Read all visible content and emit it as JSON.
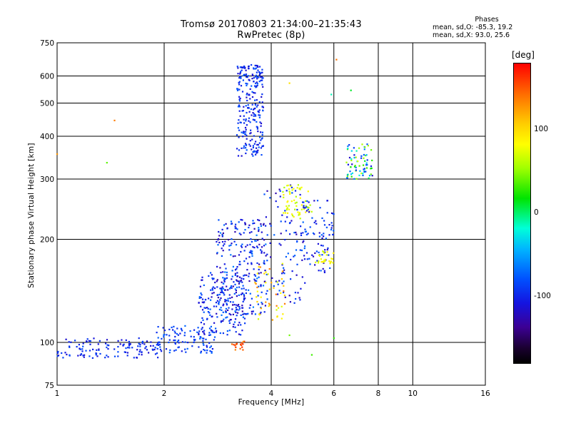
{
  "title": {
    "line1": "Tromsø 20170803 21:34:00–21:35:43",
    "line2": "RwPretec (8p)"
  },
  "phases": {
    "title": "Phases",
    "o_line": "mean, sd,O: -85.3, 19.2",
    "x_line": "mean, sd,X:  93.0, 25.6"
  },
  "colorbar": {
    "unit": "[deg]",
    "ticks": [
      {
        "label": "100",
        "value": 100
      },
      {
        "label": "0",
        "value": 0
      },
      {
        "label": "-100",
        "value": -100
      }
    ],
    "range": [
      -180,
      180
    ],
    "colors": [
      "#000000",
      "#3c0094",
      "#1414e0",
      "#0050ff",
      "#00b4ff",
      "#00ffd8",
      "#00e400",
      "#a0ff00",
      "#ffff00",
      "#ffcc00",
      "#ff6a00",
      "#ff0000"
    ]
  },
  "chart_data": {
    "type": "scatter",
    "xlabel": "Frequency [MHz]",
    "ylabel": "Stationary phase Virtual Height [km]",
    "xscale": "log",
    "yscale": "log",
    "xlim": [
      1,
      16
    ],
    "ylim": [
      75,
      750
    ],
    "xticks": [
      1,
      2,
      4,
      6,
      8,
      10,
      16
    ],
    "yticks": [
      75,
      100,
      200,
      300,
      400,
      500,
      600,
      750
    ],
    "grid": true,
    "point_color_encodes": "phase [deg]",
    "clusters": [
      {
        "x_range": [
          1.0,
          1.95
        ],
        "y_range": [
          90,
          103
        ],
        "phase_range": [
          -120,
          -80
        ],
        "n": 130
      },
      {
        "x_range": [
          1.9,
          2.8
        ],
        "y_range": [
          93,
          112
        ],
        "phase_range": [
          -110,
          -70
        ],
        "n": 110
      },
      {
        "x_range": [
          2.5,
          3.4
        ],
        "y_range": [
          105,
          160
        ],
        "phase_range": [
          -125,
          -70
        ],
        "n": 170
      },
      {
        "x_range": [
          2.8,
          3.9
        ],
        "y_range": [
          120,
          230
        ],
        "phase_range": [
          -135,
          -60
        ],
        "n": 260
      },
      {
        "x_range": [
          3.2,
          3.8
        ],
        "y_range": [
          350,
          650
        ],
        "phase_range": [
          -120,
          -75
        ],
        "n": 260
      },
      {
        "x_range": [
          3.8,
          5.0
        ],
        "y_range": [
          130,
          290
        ],
        "phase_range": [
          -130,
          -70
        ],
        "n": 90
      },
      {
        "x_range": [
          4.3,
          5.2
        ],
        "y_range": [
          230,
          290
        ],
        "phase_range": [
          70,
          110
        ],
        "n": 60
      },
      {
        "x_range": [
          3.6,
          4.4
        ],
        "y_range": [
          115,
          170
        ],
        "phase_range": [
          80,
          150
        ],
        "n": 45
      },
      {
        "x_range": [
          4.8,
          6.0
        ],
        "y_range": [
          160,
          260
        ],
        "phase_range": [
          -125,
          -70
        ],
        "n": 90
      },
      {
        "x_range": [
          5.3,
          6.0
        ],
        "y_range": [
          170,
          185
        ],
        "phase_range": [
          80,
          110
        ],
        "n": 25
      },
      {
        "x_range": [
          6.5,
          7.7
        ],
        "y_range": [
          300,
          380
        ],
        "phase_range": [
          -120,
          90
        ],
        "n": 75
      },
      {
        "x_range": [
          3.1,
          3.4
        ],
        "y_range": [
          95,
          101
        ],
        "phase_range": [
          140,
          170
        ],
        "n": 18
      }
    ],
    "outliers": [
      {
        "x": 1.45,
        "y": 445
      },
      {
        "x": 1.38,
        "y": 335
      },
      {
        "x": 1.0,
        "y": 355
      },
      {
        "x": 6.1,
        "y": 670
      },
      {
        "x": 6.7,
        "y": 545
      },
      {
        "x": 4.5,
        "y": 572
      },
      {
        "x": 5.9,
        "y": 530
      },
      {
        "x": 5.2,
        "y": 92
      },
      {
        "x": 6.0,
        "y": 103
      },
      {
        "x": 4.5,
        "y": 105
      }
    ]
  }
}
